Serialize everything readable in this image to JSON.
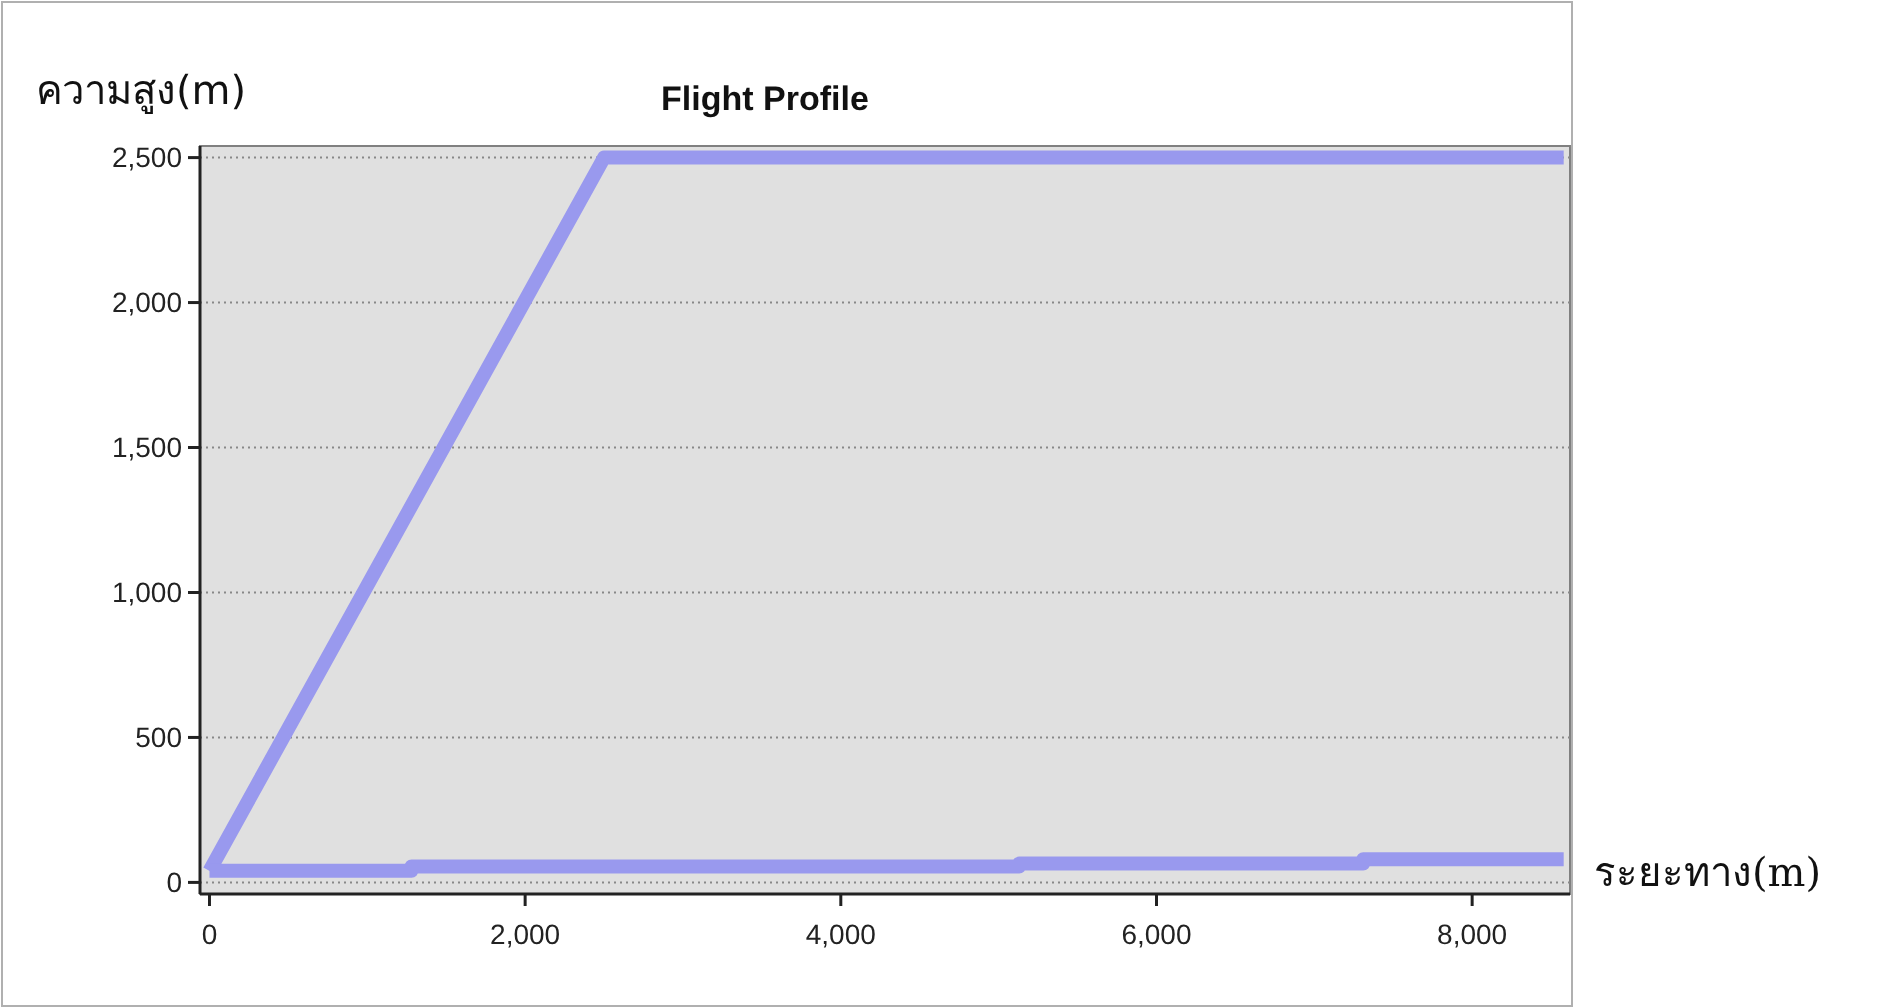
{
  "chart_data": {
    "type": "line",
    "title": "Flight Profile",
    "xlabel": "ระยะทาง(m)",
    "ylabel": "ความสูง(m)",
    "xlim": [
      -60,
      8620
    ],
    "ylim": [
      -40,
      2540
    ],
    "xticks": [
      0,
      {
        "value": 2000,
        "label": "2,000"
      },
      {
        "value": 4000,
        "label": "4,000"
      },
      {
        "value": 6000,
        "label": "6,000"
      },
      {
        "value": 8000,
        "label": "8,000"
      }
    ],
    "yticks": [
      0,
      500,
      {
        "value": 1000,
        "label": "1,000"
      },
      {
        "value": 1500,
        "label": "1,500"
      },
      {
        "value": 2000,
        "label": "2,000"
      },
      {
        "value": 2500,
        "label": "2,500"
      }
    ],
    "grid": "y",
    "marker": "none",
    "line_style": "solid",
    "series": [
      {
        "color": "#9999ee",
        "x": [
          0,
          2500,
          8580
        ],
        "values": [
          40,
          2500,
          2500
        ]
      },
      {
        "color": "#9999ee",
        "x": [
          0,
          1280,
          1280,
          5130,
          5130,
          7310,
          7310,
          8580
        ],
        "values": [
          40,
          40,
          55,
          55,
          65,
          65,
          80,
          80
        ]
      }
    ]
  }
}
